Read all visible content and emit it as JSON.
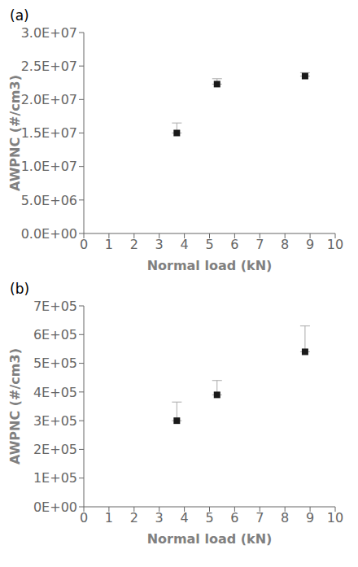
{
  "chart_data": [
    {
      "type": "scatter",
      "title": "(a)",
      "xlabel": "Normal load (kN)",
      "ylabel": "AWPNC (#/cm3)",
      "x": [
        3.7,
        5.3,
        8.8
      ],
      "values": [
        15000000.0,
        22300000.0,
        23500000.0
      ],
      "error_upper": [
        1500000.0,
        800000.0,
        500000.0
      ],
      "error_lower": [
        0.0,
        0.0,
        0.0
      ],
      "color": "#1a1a1a",
      "error_color": "#aaaaaa",
      "marker": "square",
      "grid": false,
      "xlim": [
        0,
        10
      ],
      "ylim": [
        0,
        30000000.0
      ],
      "xticks": [
        0,
        1,
        2,
        3,
        4,
        5,
        6,
        7,
        8,
        9,
        10
      ],
      "yticks": [
        {
          "value": 0.0,
          "label": "0.0E+00"
        },
        {
          "value": 5000000.0,
          "label": "5.0E+06"
        },
        {
          "value": 10000000.0,
          "label": "1.0E+07"
        },
        {
          "value": 15000000.0,
          "label": "1.5E+07"
        },
        {
          "value": 20000000.0,
          "label": "2.0E+07"
        },
        {
          "value": 25000000.0,
          "label": "2.5E+07"
        },
        {
          "value": 30000000.0,
          "label": "3.0E+07"
        }
      ]
    },
    {
      "type": "scatter",
      "title": "(b)",
      "xlabel": "Normal load (kN)",
      "ylabel": "AWPNC (#/cm3)",
      "x": [
        3.7,
        5.3,
        8.8
      ],
      "values": [
        300000.0,
        390000.0,
        540000.0
      ],
      "error_upper": [
        65000.0,
        50000.0,
        90000.0
      ],
      "error_lower": [
        0.0,
        0.0,
        0.0
      ],
      "color": "#1a1a1a",
      "error_color": "#aaaaaa",
      "marker": "square",
      "grid": false,
      "xlim": [
        0,
        10
      ],
      "ylim": [
        0,
        700000.0
      ],
      "xticks": [
        0,
        1,
        2,
        3,
        4,
        5,
        6,
        7,
        8,
        9,
        10
      ],
      "yticks": [
        {
          "value": 0.0,
          "label": "0E+00"
        },
        {
          "value": 100000.0,
          "label": "1E+05"
        },
        {
          "value": 200000.0,
          "label": "2E+05"
        },
        {
          "value": 300000.0,
          "label": "3E+05"
        },
        {
          "value": 400000.0,
          "label": "4E+05"
        },
        {
          "value": 500000.0,
          "label": "5E+05"
        },
        {
          "value": 600000.0,
          "label": "6E+05"
        },
        {
          "value": 700000.0,
          "label": "7E+05"
        }
      ]
    }
  ]
}
